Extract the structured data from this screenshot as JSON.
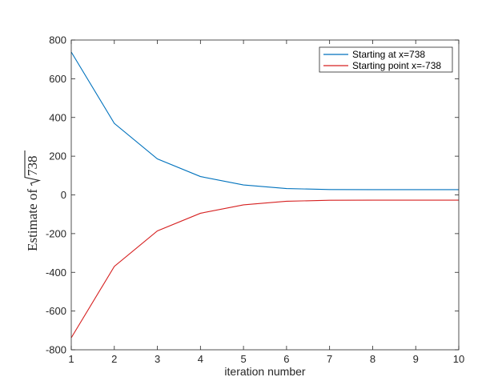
{
  "chart_data": {
    "type": "line",
    "title": "",
    "xlabel": "iteration number",
    "ylabel": {
      "prefix": "Estimate of",
      "radicand": "738"
    },
    "x": [
      1,
      2,
      3,
      4,
      5,
      6,
      7,
      8,
      9,
      10
    ],
    "xlim": [
      1,
      10
    ],
    "ylim": [
      -800,
      800
    ],
    "xticks": [
      1,
      2,
      3,
      4,
      5,
      6,
      7,
      8,
      9,
      10
    ],
    "yticks": [
      -800,
      -600,
      -400,
      -200,
      0,
      200,
      400,
      600,
      800
    ],
    "grid": false,
    "legend_position": "top-right",
    "series": [
      {
        "name": "Starting at x=738",
        "color": "#0072bd",
        "values": [
          738,
          369.5,
          185.75,
          94.86,
          51.32,
          32.85,
          27.66,
          27.17,
          27.166,
          27.166
        ]
      },
      {
        "name": "Starting point x=-738",
        "color": "#d62020",
        "values": [
          -738,
          -369.5,
          -185.75,
          -94.86,
          -51.32,
          -32.85,
          -27.66,
          -27.17,
          -27.166,
          -27.166
        ]
      }
    ]
  }
}
